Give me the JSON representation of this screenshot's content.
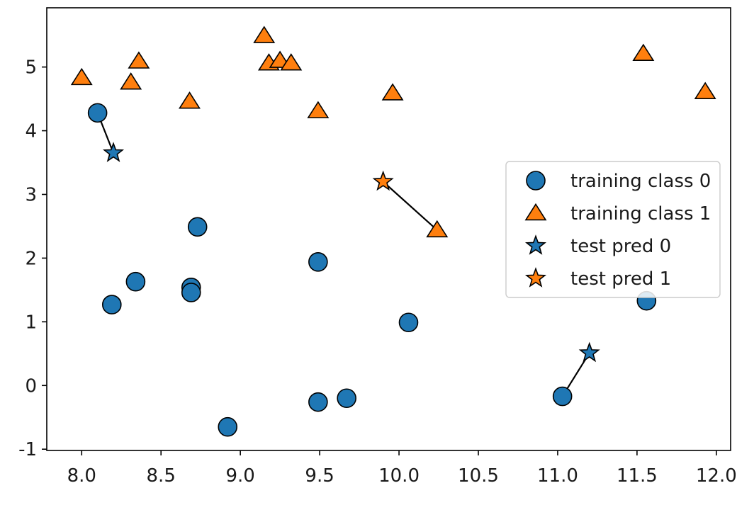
{
  "chart_data": {
    "type": "scatter",
    "title": "",
    "xlabel": "",
    "ylabel": "",
    "xlim": [
      7.78,
      12.09
    ],
    "ylim": [
      -1.02,
      5.93
    ],
    "xticks": [
      "8.0",
      "8.5",
      "9.0",
      "9.5",
      "10.0",
      "10.5",
      "11.0",
      "11.5",
      "12.0"
    ],
    "yticks": [
      "-1",
      "0",
      "1",
      "2",
      "3",
      "4",
      "5"
    ],
    "grid": false,
    "legend_position": "center-right",
    "colors": {
      "class0": "#1f77b4",
      "class1": "#ff7f0e",
      "edge": "#000000",
      "neighbor_line": "#000000"
    },
    "series": [
      {
        "name": "training class 0",
        "marker": "circle",
        "color": "#1f77b4",
        "points": [
          {
            "x": 8.1,
            "y": 4.28
          },
          {
            "x": 8.19,
            "y": 1.27
          },
          {
            "x": 8.34,
            "y": 1.63
          },
          {
            "x": 8.69,
            "y": 1.54
          },
          {
            "x": 8.69,
            "y": 1.46
          },
          {
            "x": 8.73,
            "y": 2.49
          },
          {
            "x": 8.92,
            "y": -0.65
          },
          {
            "x": 9.49,
            "y": 1.94
          },
          {
            "x": 9.49,
            "y": -0.26
          },
          {
            "x": 9.67,
            "y": -0.2
          },
          {
            "x": 10.06,
            "y": 0.99
          },
          {
            "x": 11.03,
            "y": -0.17
          },
          {
            "x": 11.56,
            "y": 1.33
          }
        ]
      },
      {
        "name": "training class 1",
        "marker": "triangle",
        "color": "#ff7f0e",
        "points": [
          {
            "x": 8.0,
            "y": 4.83
          },
          {
            "x": 8.31,
            "y": 4.76
          },
          {
            "x": 8.36,
            "y": 5.09
          },
          {
            "x": 8.68,
            "y": 4.46
          },
          {
            "x": 9.15,
            "y": 5.49
          },
          {
            "x": 9.18,
            "y": 5.06
          },
          {
            "x": 9.25,
            "y": 5.1
          },
          {
            "x": 9.32,
            "y": 5.06
          },
          {
            "x": 9.49,
            "y": 4.31
          },
          {
            "x": 9.96,
            "y": 4.59
          },
          {
            "x": 10.24,
            "y": 2.44
          },
          {
            "x": 11.54,
            "y": 5.21
          },
          {
            "x": 11.93,
            "y": 4.61
          }
        ]
      },
      {
        "name": "test pred 0",
        "marker": "star",
        "color": "#1f77b4",
        "points": [
          {
            "x": 8.2,
            "y": 3.65
          },
          {
            "x": 11.2,
            "y": 0.51
          }
        ]
      },
      {
        "name": "test pred 1",
        "marker": "star",
        "color": "#ff7f0e",
        "points": [
          {
            "x": 9.9,
            "y": 3.2
          }
        ]
      }
    ],
    "neighbor_lines": [
      {
        "from": {
          "x": 8.2,
          "y": 3.65
        },
        "to": {
          "x": 8.1,
          "y": 4.28
        }
      },
      {
        "from": {
          "x": 9.9,
          "y": 3.2
        },
        "to": {
          "x": 10.24,
          "y": 2.44
        }
      },
      {
        "from": {
          "x": 11.2,
          "y": 0.51
        },
        "to": {
          "x": 11.03,
          "y": -0.17
        }
      }
    ]
  }
}
